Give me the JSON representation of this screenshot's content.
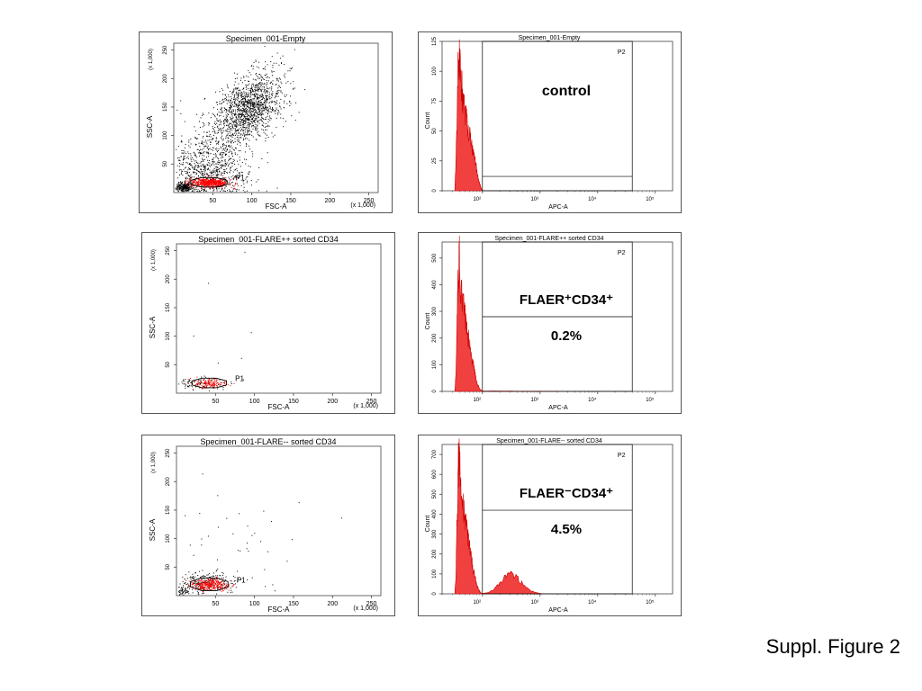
{
  "figure": {
    "caption": "Suppl. Figure 2",
    "colors": {
      "event_black": "#000000",
      "event_red": "#ff0000",
      "hist_fill": "#f04040",
      "hist_stroke": "#cc0000",
      "gate": "#000000"
    }
  },
  "chart_data": [
    {
      "type": "scatter",
      "title": "Specimen_001-Empty",
      "xlabel": "FSC-A",
      "ylabel": "SSC-A",
      "x_multiplier": "(x 1,000)",
      "y_multiplier": "(x 1,000)",
      "xlim": [
        0,
        262
      ],
      "ylim": [
        0,
        262
      ],
      "xticks": [
        "50",
        "100",
        "150",
        "200",
        "250"
      ],
      "yticks": [
        "50",
        "100",
        "150",
        "200",
        "250"
      ],
      "gate": {
        "name": "P1",
        "center": [
          45,
          18
        ],
        "rx": 25,
        "ry": 9
      },
      "populations": [
        {
          "name": "",
          "color": "black",
          "center": [
            95,
            148
          ],
          "spread": [
            22,
            28
          ],
          "count": 1400
        },
        {
          "name": "",
          "color": "black",
          "center": [
            45,
            30
          ],
          "spread": [
            25,
            40
          ],
          "count": 1100
        },
        {
          "name": "",
          "color": "black",
          "center": [
            12,
            10
          ],
          "spread": [
            5,
            4
          ],
          "count": 250
        },
        {
          "name": "",
          "color": "red",
          "center": [
            45,
            18
          ],
          "spread": [
            12,
            4
          ],
          "count": 550
        }
      ]
    },
    {
      "type": "histogram",
      "title": "Specimen_001-Empty",
      "xlabel": "APC-A",
      "ylabel": "Count",
      "xscale": "log",
      "xticks": [
        "10²",
        "10³",
        "10⁴",
        "10⁵"
      ],
      "yticks": [
        "0",
        "25",
        "50",
        "75",
        "100",
        "125"
      ],
      "ymax": 125,
      "annotation": {
        "label": "control",
        "percent": ""
      },
      "gate": {
        "name": "P2",
        "x_from": 2.0,
        "x_to": 4.6,
        "divider_y": 12
      },
      "profile": [
        [
          1.52,
          0
        ],
        [
          1.54,
          22
        ],
        [
          1.56,
          65
        ],
        [
          1.58,
          112
        ],
        [
          1.6,
          120
        ],
        [
          1.62,
          95
        ],
        [
          1.65,
          82
        ],
        [
          1.68,
          70
        ],
        [
          1.71,
          62
        ],
        [
          1.74,
          55
        ],
        [
          1.77,
          48
        ],
        [
          1.8,
          40
        ],
        [
          1.83,
          33
        ],
        [
          1.86,
          27
        ],
        [
          1.89,
          20
        ],
        [
          1.92,
          12
        ],
        [
          1.95,
          6
        ],
        [
          1.98,
          2
        ],
        [
          2.0,
          0
        ]
      ]
    },
    {
      "type": "scatter",
      "title": "Specimen_001-FLARE++ sorted CD34",
      "xlabel": "FSC-A",
      "ylabel": "SSC-A",
      "x_multiplier": "(x 1,000)",
      "y_multiplier": "(x 1,000)",
      "xlim": [
        0,
        262
      ],
      "ylim": [
        0,
        262
      ],
      "xticks": [
        "50",
        "100",
        "150",
        "200",
        "250"
      ],
      "yticks": [
        "50",
        "100",
        "150",
        "200",
        "250"
      ],
      "gate": {
        "name": "P1",
        "center": [
          42,
          18
        ],
        "rx": 24,
        "ry": 9
      },
      "populations": [
        {
          "name": "",
          "color": "black",
          "center": [
            30,
            18
          ],
          "spread": [
            18,
            6
          ],
          "count": 90
        },
        {
          "name": "",
          "color": "black",
          "center": [
            60,
            100
          ],
          "spread": [
            40,
            60
          ],
          "count": 8
        },
        {
          "name": "",
          "color": "red",
          "center": [
            42,
            18
          ],
          "spread": [
            10,
            4
          ],
          "count": 140
        }
      ]
    },
    {
      "type": "histogram",
      "title": "Specimen_001-FLARE++ sorted CD34",
      "xlabel": "APC-A",
      "ylabel": "Count",
      "xscale": "log",
      "xticks": [
        "10²",
        "10³",
        "10⁴",
        "10⁵"
      ],
      "yticks": [
        "0",
        "100",
        "200",
        "300",
        "400",
        "500"
      ],
      "ymax": 560,
      "annotation": {
        "label": "FLAER⁺CD34⁺",
        "percent": "0.2%"
      },
      "gate": {
        "name": "P2",
        "x_from": 2.0,
        "x_to": 4.6,
        "divider_y": 280
      },
      "profile": [
        [
          1.52,
          0
        ],
        [
          1.54,
          60
        ],
        [
          1.56,
          260
        ],
        [
          1.58,
          450
        ],
        [
          1.6,
          500
        ],
        [
          1.62,
          410
        ],
        [
          1.65,
          350
        ],
        [
          1.68,
          300
        ],
        [
          1.71,
          260
        ],
        [
          1.74,
          220
        ],
        [
          1.77,
          180
        ],
        [
          1.8,
          140
        ],
        [
          1.83,
          110
        ],
        [
          1.86,
          80
        ],
        [
          1.89,
          50
        ],
        [
          1.92,
          25
        ],
        [
          1.95,
          10
        ],
        [
          1.98,
          4
        ],
        [
          2.0,
          1
        ],
        [
          2.6,
          1
        ],
        [
          3.3,
          0
        ]
      ]
    },
    {
      "type": "scatter",
      "title": "Specimen_001-FLARE-- sorted CD34",
      "xlabel": "FSC-A",
      "ylabel": "SSC-A",
      "x_multiplier": "(x 1,000)",
      "y_multiplier": "(x 1,000)",
      "xlim": [
        0,
        262
      ],
      "ylim": [
        0,
        262
      ],
      "xticks": [
        "50",
        "100",
        "150",
        "200",
        "250"
      ],
      "yticks": [
        "50",
        "100",
        "150",
        "200",
        "250"
      ],
      "gate": {
        "name": "P1",
        "center": [
          42,
          20
        ],
        "rx": 26,
        "ry": 12
      },
      "populations": [
        {
          "name": "",
          "color": "black",
          "center": [
            35,
            22
          ],
          "spread": [
            20,
            10
          ],
          "count": 260
        },
        {
          "name": "",
          "color": "black",
          "center": [
            90,
            90
          ],
          "spread": [
            55,
            60
          ],
          "count": 45
        },
        {
          "name": "",
          "color": "black",
          "center": [
            8,
            8
          ],
          "spread": [
            3,
            3
          ],
          "count": 40
        },
        {
          "name": "",
          "color": "red",
          "center": [
            42,
            20
          ],
          "spread": [
            11,
            5
          ],
          "count": 320
        }
      ]
    },
    {
      "type": "histogram",
      "title": "Specimen_001-FLARE-- sorted CD34",
      "xlabel": "APC-A",
      "ylabel": "Count",
      "xscale": "log",
      "xticks": [
        "10²",
        "10³",
        "10⁴",
        "10⁵"
      ],
      "yticks": [
        "0",
        "100",
        "200",
        "300",
        "400",
        "500",
        "600",
        "700"
      ],
      "ymax": 750,
      "annotation": {
        "label": "FLAER⁻CD34⁺",
        "percent": "4.5%"
      },
      "gate": {
        "name": "P2",
        "x_from": 2.0,
        "x_to": 4.6,
        "divider_y": 420
      },
      "profile": [
        [
          1.52,
          0
        ],
        [
          1.54,
          90
        ],
        [
          1.56,
          360
        ],
        [
          1.58,
          620
        ],
        [
          1.6,
          680
        ],
        [
          1.62,
          560
        ],
        [
          1.65,
          470
        ],
        [
          1.68,
          410
        ],
        [
          1.71,
          360
        ],
        [
          1.74,
          300
        ],
        [
          1.77,
          240
        ],
        [
          1.8,
          190
        ],
        [
          1.83,
          140
        ],
        [
          1.86,
          100
        ],
        [
          1.89,
          60
        ],
        [
          1.92,
          30
        ],
        [
          1.95,
          12
        ],
        [
          1.98,
          4
        ],
        [
          2.0,
          2
        ],
        [
          2.1,
          6
        ],
        [
          2.2,
          25
        ],
        [
          2.3,
          55
        ],
        [
          2.4,
          85
        ],
        [
          2.5,
          95
        ],
        [
          2.6,
          80
        ],
        [
          2.7,
          50
        ],
        [
          2.8,
          22
        ],
        [
          2.9,
          8
        ],
        [
          3.0,
          2
        ],
        [
          3.1,
          0
        ]
      ]
    }
  ]
}
